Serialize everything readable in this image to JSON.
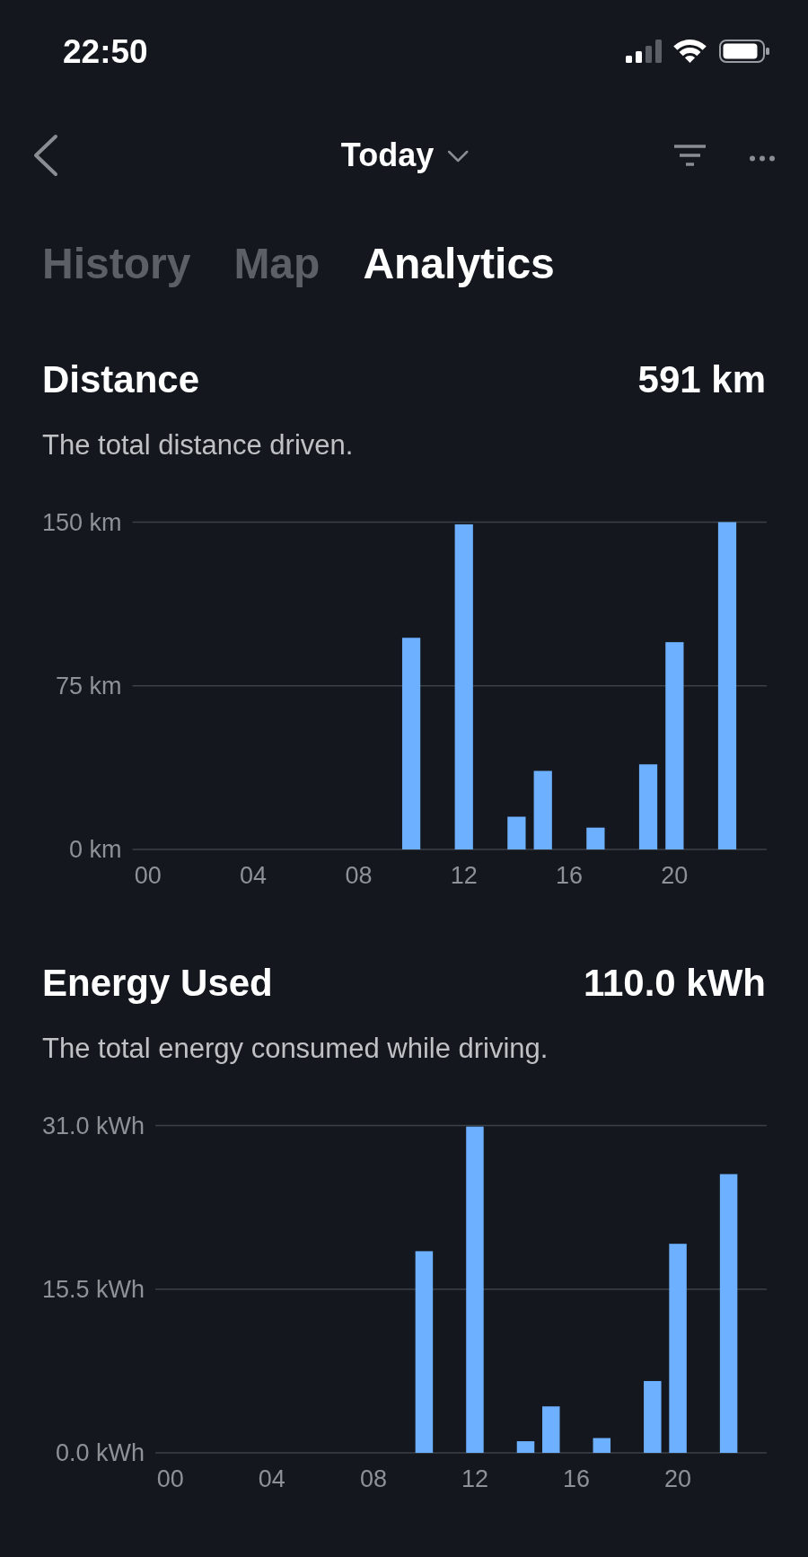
{
  "chart_data": [
    {
      "type": "other",
      "title": "Today",
      "annotations": [
        "22:50",
        "History",
        "Map",
        "Analytics"
      ]
    },
    {
      "type": "bar",
      "title": "Distance",
      "subtitle": "The total distance driven.",
      "annotations": [
        "591 km"
      ],
      "categories": [
        "00",
        null,
        null,
        null,
        "04",
        null,
        null,
        null,
        "08",
        null,
        null,
        null,
        "12",
        null,
        null,
        null,
        "16",
        null,
        null,
        null,
        "20",
        null,
        null,
        null
      ],
      "values": [
        null,
        null,
        null,
        null,
        null,
        null,
        null,
        null,
        null,
        null,
        97,
        null,
        149,
        null,
        15,
        36,
        null,
        10,
        null,
        39,
        95,
        null,
        150,
        null
      ],
      "color": "#6cb0ff",
      "ylim": [
        0,
        150
      ],
      "yticks": [
        {
          "value": 0,
          "label": "0 km"
        },
        {
          "value": 75,
          "label": "75 km"
        },
        {
          "value": 150,
          "label": "150 km"
        }
      ],
      "grid": "y"
    },
    {
      "type": "bar",
      "title": "Energy Used",
      "subtitle": "The total energy consumed while driving.",
      "annotations": [
        "110.0 kWh"
      ],
      "categories": [
        "00",
        null,
        null,
        null,
        "04",
        null,
        null,
        null,
        "08",
        null,
        null,
        null,
        "12",
        null,
        null,
        null,
        "16",
        null,
        null,
        null,
        "20",
        null,
        null,
        null
      ],
      "values": [
        null,
        null,
        null,
        null,
        null,
        null,
        null,
        null,
        null,
        null,
        19.1,
        null,
        30.9,
        null,
        1.1,
        4.4,
        null,
        1.4,
        null,
        6.8,
        19.8,
        null,
        26.4,
        null
      ],
      "color": "#6cb0ff",
      "ylim": [
        0,
        31
      ],
      "yticks": [
        {
          "value": 0,
          "label": "0.0 kWh"
        },
        {
          "value": 15.5,
          "label": "15.5 kWh"
        },
        {
          "value": 31,
          "label": "31.0 kWh"
        }
      ],
      "grid": "y"
    }
  ]
}
